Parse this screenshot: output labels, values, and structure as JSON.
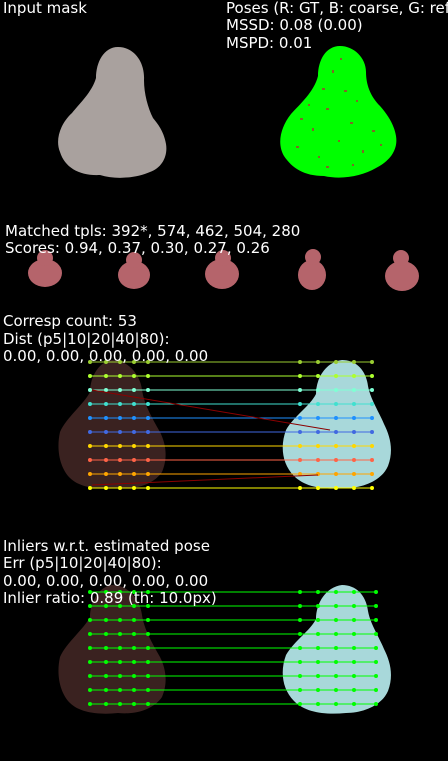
{
  "panels": {
    "input_mask": {
      "title": "Input mask"
    },
    "poses": {
      "title": "Poses (R: GT, B: coarse, G: refined)",
      "mssd": "MSSD: 0.08 (0.00)",
      "mspd": "MSPD: 0.01"
    },
    "templates": {
      "matched": "Matched tpls: 392*, 574, 462, 504, 280",
      "scores": "Scores: 0.94, 0.37, 0.30, 0.27, 0.26"
    },
    "correspondences": {
      "count": "Corresp count: 53",
      "dist_header": "Dist (p5|10|20|40|80):",
      "dist_values": "0.00, 0.00, 0.00, 0.00, 0.00"
    },
    "inliers": {
      "header": "Inliers w.r.t. estimated pose",
      "err_header": "Err (p5|10|20|40|80):",
      "err_values": "0.00, 0.00, 0.00, 0.00, 0.00",
      "ratio": "Inlier ratio: 0.89 (th: 10.0px)"
    }
  },
  "colors": {
    "background": "#000000",
    "text": "#ffffff",
    "mask": "#a9a19e",
    "pose_overlay": "#00ff00",
    "template": "#b5646b",
    "inlier_line": "#00ff00"
  }
}
